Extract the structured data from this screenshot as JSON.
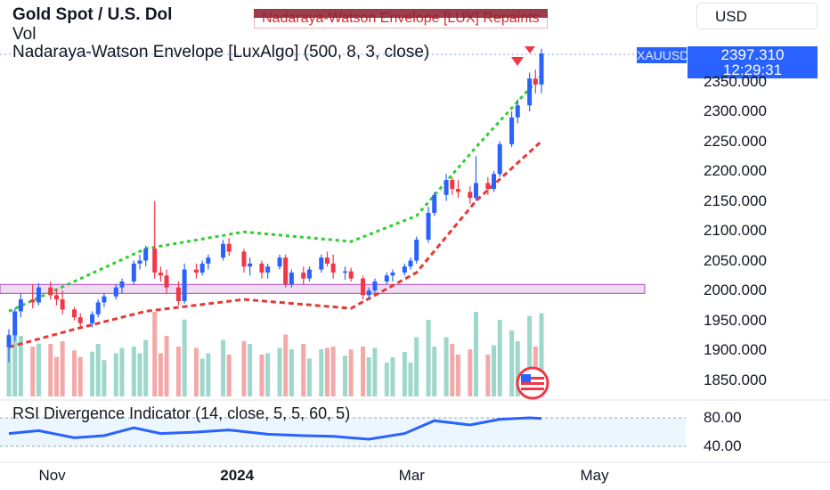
{
  "header": {
    "title": "Gold Spot / U.S. Dol",
    "vol_label": "Vol",
    "nwe_label": "Nadaraya-Watson Envelope [LuxAlgo] (500, 8, 3, close)",
    "repaint_warning": "Nadaraya-Watson Envelope [LUX] Repaints",
    "currency": "USD"
  },
  "price_tag": {
    "symbol": "XAUUSD",
    "price": "2397.310",
    "countdown": "12:29:31"
  },
  "rsi_label": "RSI Divergence Indicator (14, close, 5, 5, 60, 5)",
  "price_axis": [
    "2350.000",
    "2300.000",
    "2250.000",
    "2200.000",
    "2150.000",
    "2100.000",
    "2050.000",
    "2000.000",
    "1950.000",
    "1900.000",
    "1850.000"
  ],
  "rsi_axis": [
    "80.00",
    "40.00"
  ],
  "time_axis": [
    "Nov",
    "2024",
    "Mar",
    "May"
  ],
  "colors": {
    "bull": "#2962ff",
    "bear": "#f23645",
    "upper_env": "#32cd32",
    "lower_env": "#e53935",
    "vol_bull": "#9ed7cb",
    "vol_bear": "#f4a9a9",
    "rsi_line": "#2962ff",
    "zone": "#e1bee7",
    "accent": "#2962ff"
  },
  "chart_data": [
    {
      "type": "candlestick",
      "title": "Gold Spot / U.S. Dol",
      "xlabel": "",
      "ylabel": "",
      "ylim": [
        1835,
        2420
      ],
      "x_ticks": [
        "Nov",
        "2024",
        "Mar",
        "May"
      ],
      "y_ticks": [
        2350,
        2300,
        2250,
        2200,
        2150,
        2100,
        2050,
        2000,
        1950,
        1900,
        1850
      ],
      "candles": [
        {
          "date": "2023-10-16",
          "open": 1905,
          "high": 1935,
          "low": 1880,
          "close": 1925
        },
        {
          "date": "2023-10-18",
          "open": 1925,
          "high": 1970,
          "low": 1915,
          "close": 1965
        },
        {
          "date": "2023-10-20",
          "open": 1965,
          "high": 1995,
          "low": 1955,
          "close": 1985
        },
        {
          "date": "2023-10-24",
          "open": 1985,
          "high": 2010,
          "low": 1970,
          "close": 1980
        },
        {
          "date": "2023-10-26",
          "open": 1980,
          "high": 2012,
          "low": 1975,
          "close": 2005
        },
        {
          "date": "2023-10-30",
          "open": 2005,
          "high": 2015,
          "low": 1985,
          "close": 1992
        },
        {
          "date": "2023-11-01",
          "open": 1992,
          "high": 2002,
          "low": 1975,
          "close": 1985
        },
        {
          "date": "2023-11-03",
          "open": 1985,
          "high": 2000,
          "low": 1960,
          "close": 1968
        },
        {
          "date": "2023-11-07",
          "open": 1968,
          "high": 1972,
          "low": 1950,
          "close": 1955
        },
        {
          "date": "2023-11-09",
          "open": 1955,
          "high": 1962,
          "low": 1935,
          "close": 1945
        },
        {
          "date": "2023-11-13",
          "open": 1945,
          "high": 1965,
          "low": 1938,
          "close": 1960
        },
        {
          "date": "2023-11-15",
          "open": 1960,
          "high": 1985,
          "low": 1955,
          "close": 1980
        },
        {
          "date": "2023-11-17",
          "open": 1980,
          "high": 1995,
          "low": 1972,
          "close": 1990
        },
        {
          "date": "2023-11-21",
          "open": 1990,
          "high": 2010,
          "low": 1985,
          "close": 2005
        },
        {
          "date": "2023-11-23",
          "open": 2005,
          "high": 2020,
          "low": 1995,
          "close": 2015
        },
        {
          "date": "2023-11-27",
          "open": 2015,
          "high": 2050,
          "low": 2010,
          "close": 2045
        },
        {
          "date": "2023-11-29",
          "open": 2045,
          "high": 2060,
          "low": 2035,
          "close": 2050
        },
        {
          "date": "2023-12-01",
          "open": 2050,
          "high": 2075,
          "low": 2040,
          "close": 2070
        },
        {
          "date": "2023-12-04",
          "open": 2070,
          "high": 2150,
          "low": 2020,
          "close": 2030
        },
        {
          "date": "2023-12-06",
          "open": 2030,
          "high": 2040,
          "low": 2015,
          "close": 2025
        },
        {
          "date": "2023-12-08",
          "open": 2025,
          "high": 2035,
          "low": 1995,
          "close": 2005
        },
        {
          "date": "2023-12-12",
          "open": 2005,
          "high": 2015,
          "low": 1975,
          "close": 1982
        },
        {
          "date": "2023-12-14",
          "open": 1982,
          "high": 2045,
          "low": 1978,
          "close": 2035
        },
        {
          "date": "2023-12-18",
          "open": 2035,
          "high": 2045,
          "low": 2020,
          "close": 2030
        },
        {
          "date": "2023-12-20",
          "open": 2030,
          "high": 2050,
          "low": 2025,
          "close": 2045
        },
        {
          "date": "2023-12-22",
          "open": 2045,
          "high": 2060,
          "low": 2035,
          "close": 2055
        },
        {
          "date": "2023-12-27",
          "open": 2055,
          "high": 2085,
          "low": 2050,
          "close": 2078
        },
        {
          "date": "2023-12-29",
          "open": 2078,
          "high": 2088,
          "low": 2058,
          "close": 2065
        },
        {
          "date": "2024-01-03",
          "open": 2065,
          "high": 2070,
          "low": 2030,
          "close": 2040
        },
        {
          "date": "2024-01-05",
          "open": 2040,
          "high": 2055,
          "low": 2025,
          "close": 2045
        },
        {
          "date": "2024-01-09",
          "open": 2045,
          "high": 2050,
          "low": 2020,
          "close": 2030
        },
        {
          "date": "2024-01-11",
          "open": 2030,
          "high": 2045,
          "low": 2020,
          "close": 2040
        },
        {
          "date": "2024-01-15",
          "open": 2040,
          "high": 2060,
          "low": 2035,
          "close": 2055
        },
        {
          "date": "2024-01-17",
          "open": 2055,
          "high": 2060,
          "low": 2005,
          "close": 2010
        },
        {
          "date": "2024-01-19",
          "open": 2010,
          "high": 2035,
          "low": 2005,
          "close": 2030
        },
        {
          "date": "2024-01-23",
          "open": 2030,
          "high": 2040,
          "low": 2010,
          "close": 2020
        },
        {
          "date": "2024-01-25",
          "open": 2020,
          "high": 2040,
          "low": 2015,
          "close": 2035
        },
        {
          "date": "2024-01-29",
          "open": 2035,
          "high": 2060,
          "low": 2030,
          "close": 2055
        },
        {
          "date": "2024-01-31",
          "open": 2055,
          "high": 2065,
          "low": 2040,
          "close": 2045
        },
        {
          "date": "2024-02-02",
          "open": 2045,
          "high": 2060,
          "low": 2020,
          "close": 2030
        },
        {
          "date": "2024-02-06",
          "open": 2030,
          "high": 2040,
          "low": 2018,
          "close": 2032
        },
        {
          "date": "2024-02-08",
          "open": 2032,
          "high": 2038,
          "low": 2015,
          "close": 2020
        },
        {
          "date": "2024-02-12",
          "open": 2020,
          "high": 2025,
          "low": 1985,
          "close": 1992
        },
        {
          "date": "2024-02-14",
          "open": 1992,
          "high": 2005,
          "low": 1985,
          "close": 2000
        },
        {
          "date": "2024-02-16",
          "open": 2000,
          "high": 2020,
          "low": 1995,
          "close": 2015
        },
        {
          "date": "2024-02-20",
          "open": 2015,
          "high": 2030,
          "low": 2010,
          "close": 2025
        },
        {
          "date": "2024-02-22",
          "open": 2025,
          "high": 2035,
          "low": 2015,
          "close": 2030
        },
        {
          "date": "2024-02-26",
          "open": 2030,
          "high": 2045,
          "low": 2025,
          "close": 2040
        },
        {
          "date": "2024-02-28",
          "open": 2040,
          "high": 2055,
          "low": 2035,
          "close": 2050
        },
        {
          "date": "2024-03-01",
          "open": 2050,
          "high": 2090,
          "low": 2045,
          "close": 2085
        },
        {
          "date": "2024-03-05",
          "open": 2085,
          "high": 2140,
          "low": 2080,
          "close": 2130
        },
        {
          "date": "2024-03-07",
          "open": 2130,
          "high": 2165,
          "low": 2125,
          "close": 2160
        },
        {
          "date": "2024-03-11",
          "open": 2160,
          "high": 2195,
          "low": 2150,
          "close": 2185
        },
        {
          "date": "2024-03-13",
          "open": 2185,
          "high": 2190,
          "low": 2160,
          "close": 2170
        },
        {
          "date": "2024-03-15",
          "open": 2170,
          "high": 2185,
          "low": 2155,
          "close": 2165
        },
        {
          "date": "2024-03-19",
          "open": 2165,
          "high": 2175,
          "low": 2145,
          "close": 2155
        },
        {
          "date": "2024-03-21",
          "open": 2155,
          "high": 2225,
          "low": 2150,
          "close": 2180
        },
        {
          "date": "2024-03-25",
          "open": 2180,
          "high": 2190,
          "low": 2160,
          "close": 2170
        },
        {
          "date": "2024-03-27",
          "open": 2170,
          "high": 2200,
          "low": 2165,
          "close": 2195
        },
        {
          "date": "2024-03-29",
          "open": 2195,
          "high": 2250,
          "low": 2190,
          "close": 2245
        },
        {
          "date": "2024-04-02",
          "open": 2245,
          "high": 2300,
          "low": 2240,
          "close": 2290
        },
        {
          "date": "2024-04-04",
          "open": 2290,
          "high": 2320,
          "low": 2280,
          "close": 2310
        },
        {
          "date": "2024-04-08",
          "open": 2310,
          "high": 2365,
          "low": 2300,
          "close": 2355
        },
        {
          "date": "2024-04-10",
          "open": 2355,
          "high": 2370,
          "low": 2330,
          "close": 2345
        },
        {
          "date": "2024-04-12",
          "open": 2345,
          "high": 2405,
          "low": 2330,
          "close": 2397
        }
      ],
      "upper_envelope": [
        {
          "date": "2023-10-16",
          "y": 1965
        },
        {
          "date": "2023-11-07",
          "y": 2015
        },
        {
          "date": "2023-12-01",
          "y": 2070
        },
        {
          "date": "2024-01-03",
          "y": 2098
        },
        {
          "date": "2024-02-08",
          "y": 2082
        },
        {
          "date": "2024-03-01",
          "y": 2125
        },
        {
          "date": "2024-03-21",
          "y": 2240
        },
        {
          "date": "2024-04-12",
          "y": 2360
        }
      ],
      "lower_envelope": [
        {
          "date": "2023-10-16",
          "y": 1905
        },
        {
          "date": "2023-11-07",
          "y": 1935
        },
        {
          "date": "2023-12-01",
          "y": 1965
        },
        {
          "date": "2024-01-03",
          "y": 1985
        },
        {
          "date": "2024-02-08",
          "y": 1970
        },
        {
          "date": "2024-03-01",
          "y": 2030
        },
        {
          "date": "2024-03-21",
          "y": 2150
        },
        {
          "date": "2024-04-12",
          "y": 2250
        }
      ],
      "zone": {
        "low": 1995,
        "high": 2010
      },
      "last_price": 2397.31
    },
    {
      "type": "line",
      "title": "RSI Divergence Indicator (14, close, 5, 5, 60, 5)",
      "ylim": [
        28,
        85
      ],
      "y_ticks": [
        80,
        40
      ],
      "x": [
        "2023-10-16",
        "2023-10-26",
        "2023-11-07",
        "2023-11-17",
        "2023-11-27",
        "2023-12-06",
        "2023-12-18",
        "2023-12-29",
        "2024-01-11",
        "2024-01-23",
        "2024-02-02",
        "2024-02-14",
        "2024-02-26",
        "2024-03-07",
        "2024-03-19",
        "2024-03-29",
        "2024-04-08",
        "2024-04-12"
      ],
      "values": [
        58,
        62,
        52,
        55,
        66,
        58,
        60,
        63,
        57,
        55,
        54,
        50,
        58,
        76,
        70,
        78,
        80,
        79
      ],
      "band": [
        40,
        80
      ]
    }
  ]
}
